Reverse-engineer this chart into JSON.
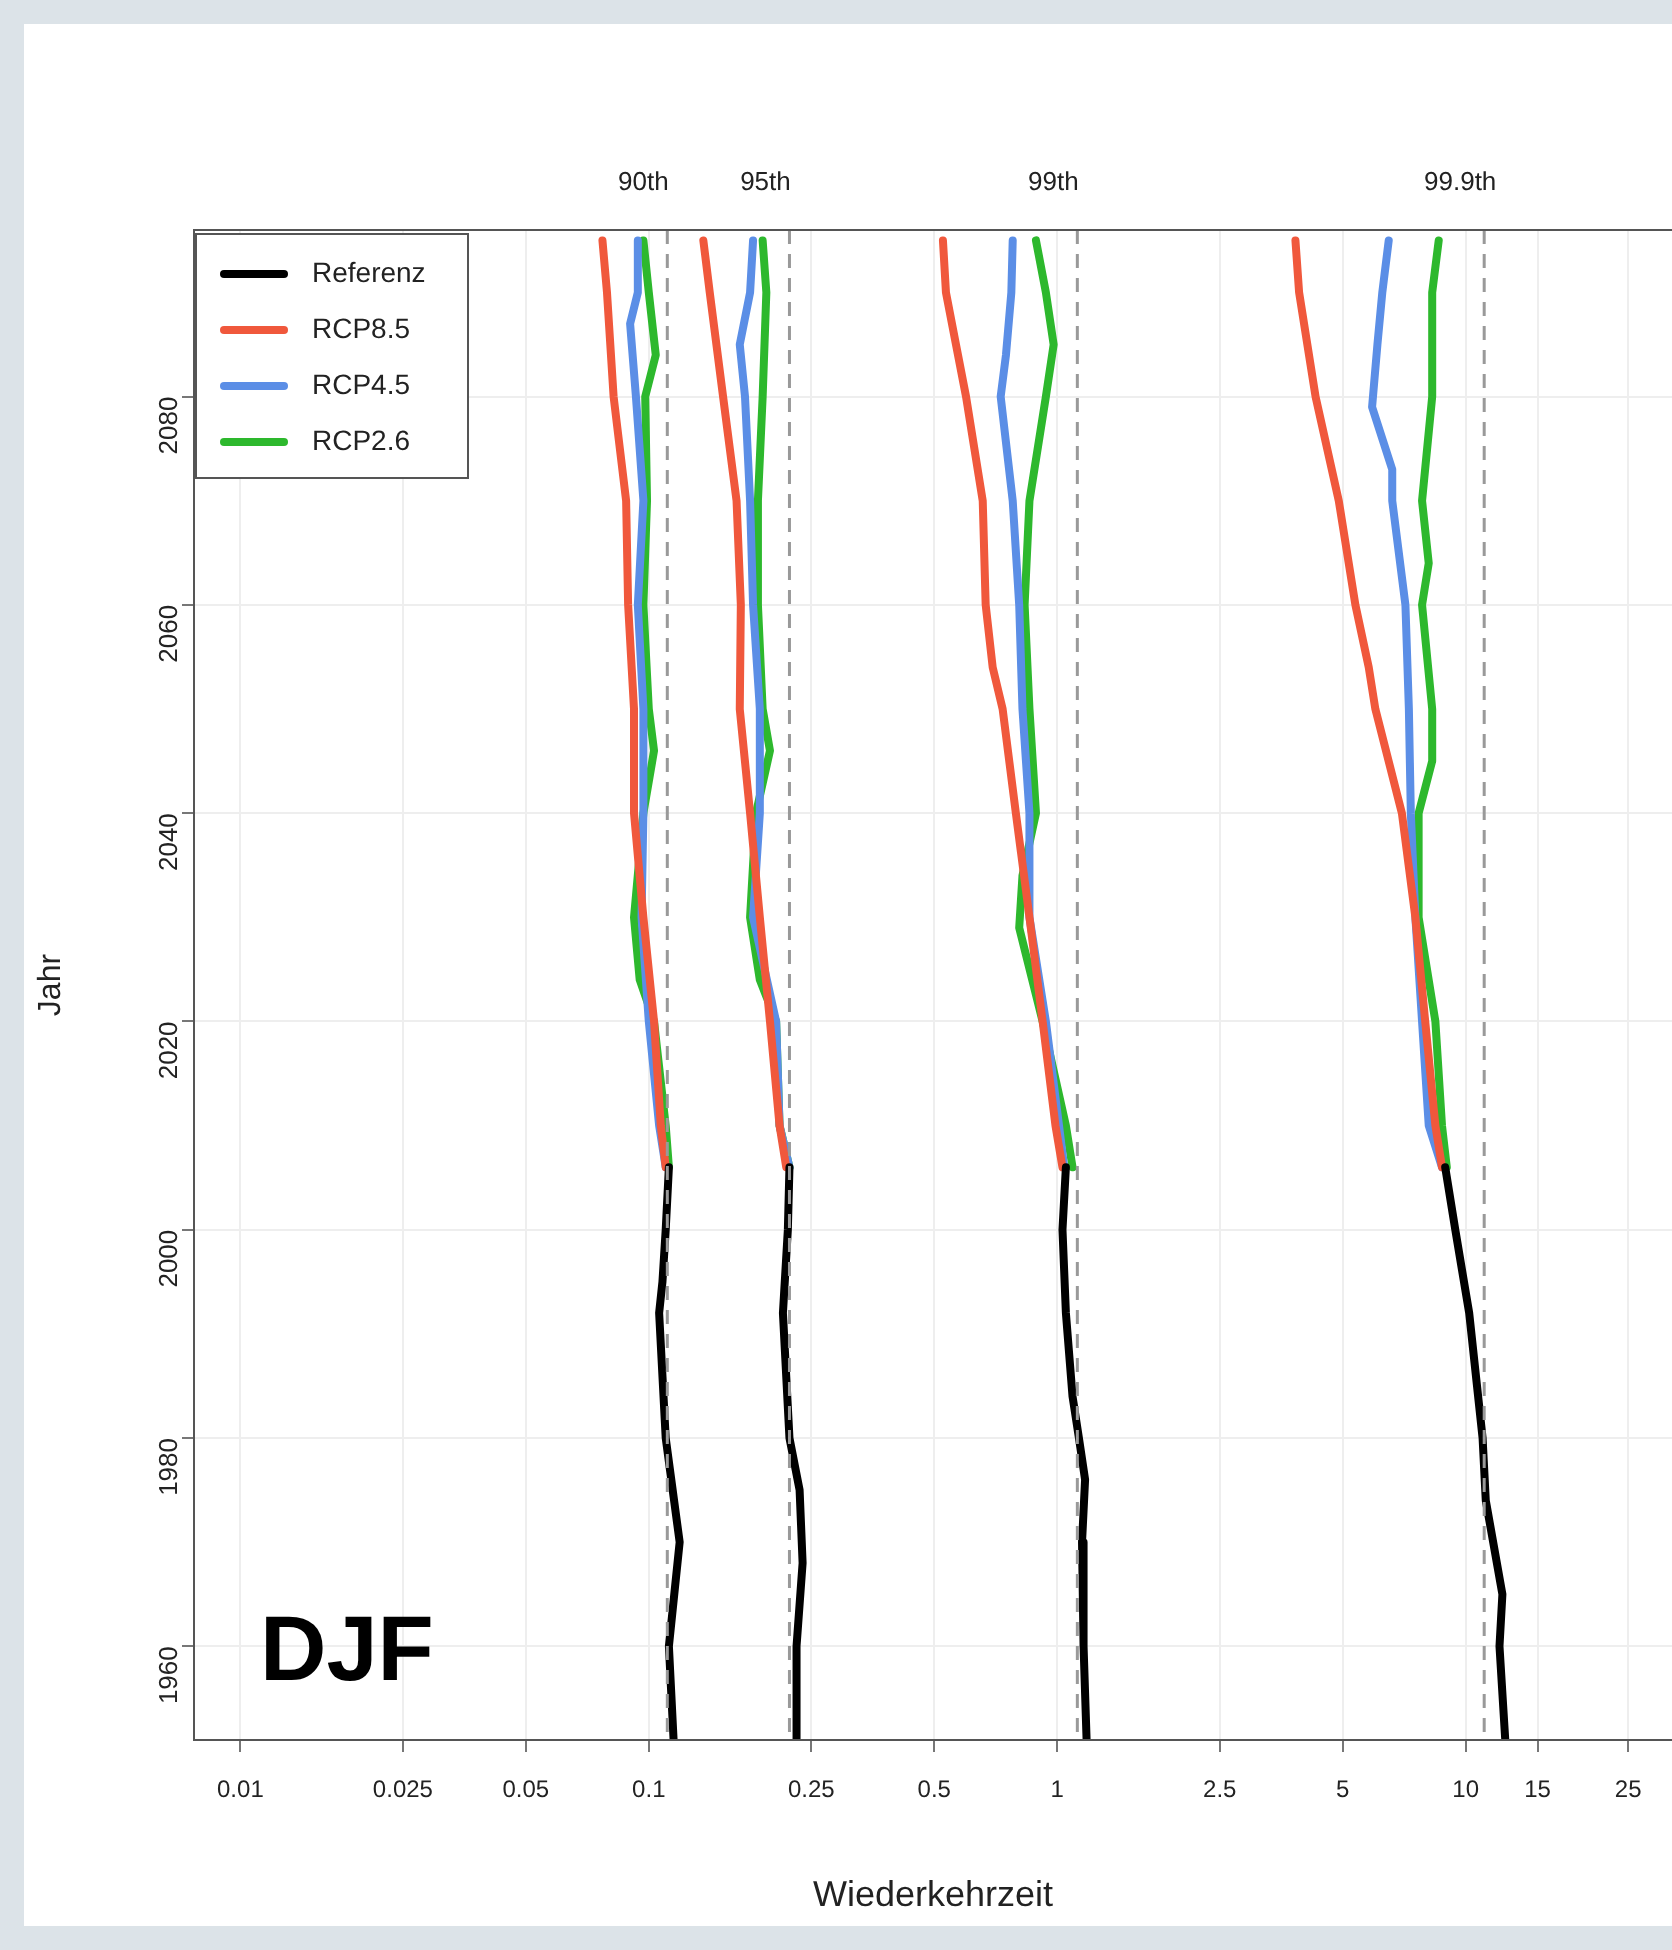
{
  "chart_data": {
    "type": "line",
    "xlabel": "Wiederkehrzeit",
    "ylabel": "Jahr",
    "log": "x",
    "grid": true,
    "legend": "top left",
    "marker": "none",
    "line_style": "solid",
    "xlim": [
      0.0077,
      32
    ],
    "ylim": [
      1951,
      2096
    ],
    "xticks": [
      0.01,
      0.025,
      0.05,
      0.1,
      0.25,
      0.5,
      1,
      2.5,
      5,
      10,
      15,
      25
    ],
    "yticks": [
      1960,
      1980,
      2000,
      2020,
      2040,
      2060,
      2080
    ],
    "annotations": [
      "DJF"
    ],
    "ref_lines": [
      {
        "axis": "x",
        "value": 0.111,
        "label": "90th",
        "color": "#999999",
        "line_style": "dashed"
      },
      {
        "axis": "x",
        "value": 0.221,
        "label": "95th",
        "color": "#999999",
        "line_style": "dashed"
      },
      {
        "axis": "x",
        "value": 1.12,
        "label": "99th",
        "color": "#999999",
        "line_style": "dashed"
      },
      {
        "axis": "x",
        "value": 11.1,
        "label": "99.9th",
        "color": "#999999",
        "line_style": "dashed"
      }
    ],
    "series": [
      {
        "type": "line",
        "name": "Referenz",
        "color": "#000000",
        "x": [
          0.112,
          0.11,
          0.108,
          0.106,
          0.11,
          0.119,
          0.112,
          0.115
        ],
        "values": [
          2006,
          2000,
          1995,
          1992,
          1980,
          1970,
          1960,
          1951
        ]
      },
      {
        "type": "line",
        "color": "#000000",
        "x": [
          0.221,
          0.219,
          0.213,
          0.221,
          0.234,
          0.238,
          0.23,
          0.23
        ],
        "values": [
          2006,
          2000,
          1992,
          1980,
          1975,
          1968,
          1960,
          1951
        ]
      },
      {
        "type": "line",
        "color": "#000000",
        "x": [
          1.05,
          1.03,
          1.05,
          1.09,
          1.13,
          1.17,
          1.15,
          1.16,
          1.18
        ],
        "values": [
          2006,
          2000,
          1992,
          1984,
          1980,
          1976,
          1970,
          1960,
          1951
        ]
      },
      {
        "type": "line",
        "color": "#000000",
        "x": [
          8.91,
          9.43,
          10.2,
          11.0,
          11.2,
          12.3,
          12.1,
          12.5
        ],
        "values": [
          2006,
          2000,
          1992,
          1980,
          1974,
          1965,
          1960,
          1951
        ]
      },
      {
        "type": "line",
        "name": "RCP8.5",
        "color": "#f0583c",
        "x": [
          0.077,
          0.079,
          0.082,
          0.088,
          0.089,
          0.092,
          0.092,
          0.097,
          0.103,
          0.107,
          0.11
        ],
        "values": [
          2095,
          2090,
          2080,
          2070,
          2060,
          2050,
          2040,
          2030,
          2020,
          2010,
          2006
        ]
      },
      {
        "type": "line",
        "color": "#f0583c",
        "x": [
          0.136,
          0.141,
          0.152,
          0.164,
          0.168,
          0.167,
          0.177,
          0.187,
          0.198,
          0.209,
          0.217
        ],
        "values": [
          2095,
          2090,
          2080,
          2070,
          2060,
          2050,
          2040,
          2030,
          2020,
          2010,
          2006
        ]
      },
      {
        "type": "line",
        "color": "#f0583c",
        "x": [
          0.525,
          0.534,
          0.565,
          0.598,
          0.657,
          0.668,
          0.695,
          0.735,
          0.792,
          0.855,
          0.921,
          0.99,
          1.03
        ],
        "values": [
          2095,
          2090,
          2085,
          2080,
          2070,
          2060,
          2054,
          2050,
          2040,
          2030,
          2020,
          2010,
          2006
        ]
      },
      {
        "type": "line",
        "color": "#f0583c",
        "x": [
          3.83,
          3.91,
          4.29,
          4.89,
          5.37,
          5.79,
          6.01,
          6.98,
          7.53,
          7.96,
          8.43,
          8.75
        ],
        "values": [
          2095,
          2090,
          2080,
          2070,
          2060,
          2054,
          2050,
          2040,
          2030,
          2020,
          2010,
          2006
        ]
      },
      {
        "type": "line",
        "name": "RCP4.5",
        "color": "#5b8ee6",
        "x": [
          0.094,
          0.094,
          0.09,
          0.093,
          0.097,
          0.094,
          0.097,
          0.097,
          0.096,
          0.1,
          0.106,
          0.11
        ],
        "values": [
          2095,
          2090,
          2087,
          2080,
          2070,
          2060,
          2050,
          2040,
          2030,
          2020,
          2010,
          2006
        ]
      },
      {
        "type": "line",
        "color": "#5b8ee6",
        "x": [
          0.18,
          0.177,
          0.167,
          0.172,
          0.177,
          0.18,
          0.187,
          0.187,
          0.18,
          0.205,
          0.209,
          0.221
        ],
        "values": [
          2095,
          2090,
          2085,
          2080,
          2070,
          2060,
          2050,
          2040,
          2030,
          2020,
          2010,
          2006
        ]
      },
      {
        "type": "line",
        "color": "#5b8ee6",
        "x": [
          0.778,
          0.772,
          0.749,
          0.727,
          0.778,
          0.807,
          0.822,
          0.855,
          0.855,
          0.938,
          1.01,
          1.04
        ],
        "values": [
          2095,
          2090,
          2084,
          2080,
          2070,
          2060,
          2050,
          2040,
          2030,
          2020,
          2010,
          2006
        ]
      },
      {
        "type": "line",
        "color": "#5b8ee6",
        "x": [
          6.48,
          6.25,
          6.08,
          5.9,
          6.61,
          6.61,
          7.12,
          7.26,
          7.34,
          7.53,
          7.82,
          8.12,
          8.75
        ],
        "values": [
          2095,
          2090,
          2085,
          2079,
          2073,
          2070,
          2060,
          2050,
          2040,
          2030,
          2020,
          2010,
          2006
        ]
      },
      {
        "type": "line",
        "name": "RCP2.6",
        "color": "#2db82d",
        "x": [
          0.097,
          0.1,
          0.104,
          0.098,
          0.099,
          0.097,
          0.1,
          0.103,
          0.097,
          0.092,
          0.095,
          0.103,
          0.11,
          0.112
        ],
        "values": [
          2095,
          2090,
          2084,
          2080,
          2070,
          2060,
          2050,
          2046,
          2040,
          2030,
          2024,
          2020,
          2010,
          2006
        ]
      },
      {
        "type": "line",
        "color": "#2db82d",
        "x": [
          0.19,
          0.194,
          0.19,
          0.185,
          0.185,
          0.19,
          0.198,
          0.183,
          0.177,
          0.187,
          0.205,
          0.209,
          0.221
        ],
        "values": [
          2095,
          2090,
          2080,
          2070,
          2060,
          2050,
          2046,
          2040,
          2030,
          2024,
          2020,
          2010,
          2006
        ]
      },
      {
        "type": "line",
        "color": "#2db82d",
        "x": [
          0.887,
          0.938,
          0.98,
          0.938,
          0.855,
          0.832,
          0.855,
          0.887,
          0.822,
          0.807,
          0.921,
          1.05,
          1.09
        ],
        "values": [
          2095,
          2090,
          2085,
          2080,
          2070,
          2060,
          2050,
          2040,
          2034,
          2029,
          2020,
          2010,
          2006
        ]
      },
      {
        "type": "line",
        "color": "#2db82d",
        "x": [
          8.59,
          8.28,
          8.28,
          7.82,
          8.12,
          7.82,
          8.28,
          8.28,
          7.67,
          7.67,
          8.43,
          8.75,
          8.99
        ],
        "values": [
          2095,
          2090,
          2080,
          2070,
          2064,
          2060,
          2050,
          2045,
          2040,
          2030,
          2020,
          2010,
          2006
        ]
      }
    ]
  }
}
